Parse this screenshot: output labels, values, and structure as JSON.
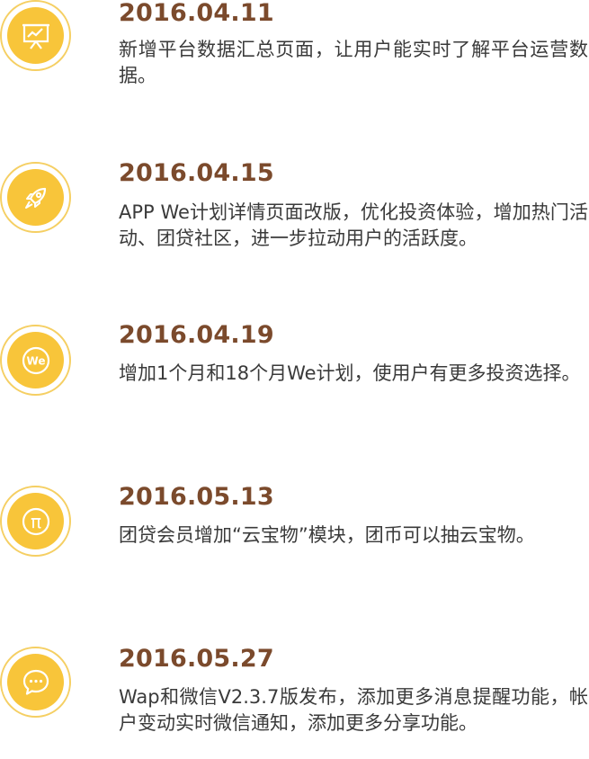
{
  "timeline": {
    "entries": [
      {
        "date": "2016.04.11",
        "text": "新增平台数据汇总页面，让用户能实时了解平台运营数据。",
        "icon": "chart-board-icon"
      },
      {
        "date": "2016.04.15",
        "text": "APP We计划详情页面改版，优化投资体验，增加热门活动、团贷社区，进一步拉动用户的活跃度。",
        "icon": "rocket-icon"
      },
      {
        "date": "2016.04.19",
        "text": "增加1个月和18个月We计划，使用户有更多投资选择。",
        "icon": "we-logo-icon",
        "icon_text": "We"
      },
      {
        "date": "2016.05.13",
        "text": "团贷会员增加“云宝物”模块，团币可以抽云宝物。",
        "icon": "pi-icon",
        "icon_text": "π"
      },
      {
        "date": "2016.05.27",
        "text": "Wap和微信V2.3.7版发布，添加更多消息提醒功能，帐户变动实时微信通知，添加更多分享功能。",
        "icon": "chat-bubble-icon"
      }
    ]
  },
  "colors": {
    "date": "#7b4a2c",
    "text": "#3a3a3a",
    "icon_fill": "#f8c53a",
    "icon_ring": "#f5cf63"
  }
}
